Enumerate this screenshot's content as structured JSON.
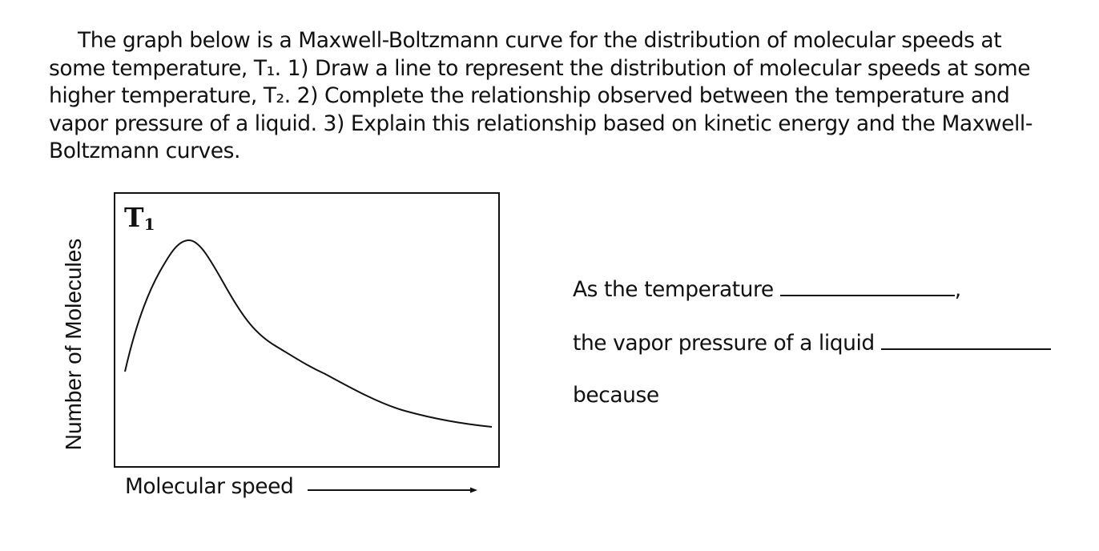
{
  "question": {
    "text": "The graph below is a Maxwell-Boltzmann curve for the distribution of molecular speeds at some temperature, T₁.  1) Draw a line to represent the distribution of molecular speeds at some higher temperature, T₂.  2) Complete the relationship observed between the temperature and vapor pressure of a liquid. 3) Explain this relationship based on kinetic energy and the Maxwell-Boltzmann curves."
  },
  "graph": {
    "curve_label_main": "T",
    "curve_label_sub": "1",
    "y_axis_label": "Number of Molecules",
    "x_axis_label": "Molecular speed"
  },
  "relationship": {
    "line1": "As the temperature",
    "line1_suffix": ",",
    "line2": "the vapor pressure of a liquid",
    "line3": "because"
  }
}
